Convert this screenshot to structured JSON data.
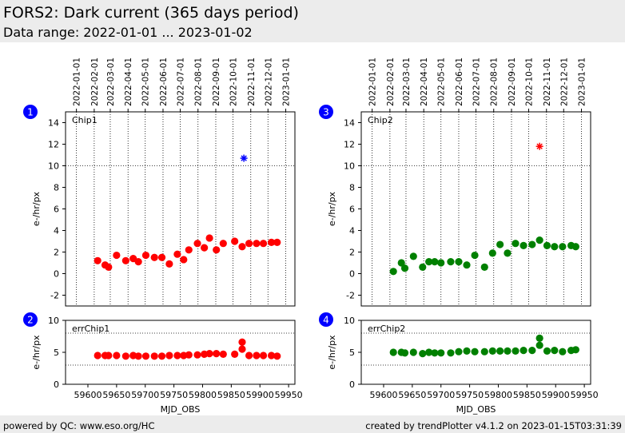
{
  "header": {
    "title": "FORS2: Dark current (365 days period)",
    "subtitle": "Data range: 2022-01-01 ... 2023-01-02"
  },
  "footer": {
    "left": "powered by QC: www.eso.org/HC",
    "right": "created by trendPlotter v4.1.2 on 2023-01-15T03:31:39"
  },
  "colors": {
    "red": "#ff0000",
    "green": "#008000",
    "blue": "#0000ff",
    "badge": "#0000ff"
  },
  "chart_data": [
    {
      "type": "scatter",
      "badge": "1",
      "panel_label": "Chip1",
      "ylabel": "e-/hr/px",
      "xlim": [
        59561,
        59961
      ],
      "ylim": [
        -3,
        15
      ],
      "yticks": [
        -2,
        0,
        2,
        4,
        6,
        8,
        10,
        12,
        14
      ],
      "hlines": [
        10
      ],
      "date_ticks": [
        "2022-01-01",
        "2022-02-01",
        "2022-03-01",
        "2022-04-01",
        "2022-05-01",
        "2022-06-01",
        "2022-07-01",
        "2022-08-01",
        "2022-09-01",
        "2022-10-01",
        "2022-11-01",
        "2022-12-01",
        "2023-01-01"
      ],
      "date_ticks_mjd": [
        59580,
        59611,
        59639,
        59670,
        59700,
        59731,
        59761,
        59792,
        59823,
        59853,
        59884,
        59914,
        59945
      ],
      "series": [
        {
          "color": "#ff0000",
          "marker": "circle",
          "x": [
            59617,
            59630,
            59636,
            59650,
            59666,
            59679,
            59688,
            59701,
            59716,
            59729,
            59742,
            59756,
            59767,
            59776,
            59791,
            59803,
            59812,
            59824,
            59836,
            59856,
            59869,
            59881,
            59894,
            59906,
            59920,
            59930
          ],
          "y": [
            1.2,
            0.8,
            0.6,
            1.7,
            1.2,
            1.4,
            1.1,
            1.7,
            1.5,
            1.5,
            0.9,
            1.8,
            1.3,
            2.2,
            2.8,
            2.4,
            3.3,
            2.2,
            2.8,
            3.0,
            2.5,
            2.8,
            2.8,
            2.8,
            2.9,
            2.9
          ]
        },
        {
          "color": "#0000ff",
          "marker": "star",
          "x": [
            59872
          ],
          "y": [
            10.7
          ]
        }
      ]
    },
    {
      "type": "scatter",
      "badge": "2",
      "panel_label": "errChip1",
      "ylabel": "e-/hr/px",
      "xlabel": "MJD_OBS",
      "xlim": [
        59561,
        59961
      ],
      "ylim": [
        0,
        10
      ],
      "yticks": [
        0,
        5,
        10
      ],
      "xticks": [
        59600,
        59650,
        59700,
        59750,
        59800,
        59850,
        59900,
        59950
      ],
      "hlines": [
        3,
        8
      ],
      "series": [
        {
          "color": "#ff0000",
          "marker": "circle",
          "x": [
            59617,
            59630,
            59636,
            59650,
            59666,
            59679,
            59688,
            59701,
            59716,
            59729,
            59742,
            59756,
            59767,
            59776,
            59791,
            59803,
            59812,
            59824,
            59836,
            59856,
            59869,
            59869,
            59881,
            59894,
            59906,
            59920,
            59930
          ],
          "y": [
            4.5,
            4.5,
            4.5,
            4.5,
            4.4,
            4.5,
            4.4,
            4.4,
            4.4,
            4.4,
            4.5,
            4.5,
            4.5,
            4.6,
            4.6,
            4.7,
            4.8,
            4.8,
            4.7,
            4.7,
            6.6,
            5.5,
            4.5,
            4.5,
            4.5,
            4.5,
            4.4
          ]
        }
      ]
    },
    {
      "type": "scatter",
      "badge": "3",
      "panel_label": "Chip2",
      "ylabel": "e-/hr/px",
      "xlim": [
        59561,
        59961
      ],
      "ylim": [
        -3,
        15
      ],
      "yticks": [
        -2,
        0,
        2,
        4,
        6,
        8,
        10,
        12,
        14
      ],
      "hlines": [
        10
      ],
      "date_ticks": [
        "2022-01-01",
        "2022-02-01",
        "2022-03-01",
        "2022-04-01",
        "2022-05-01",
        "2022-06-01",
        "2022-07-01",
        "2022-08-01",
        "2022-09-01",
        "2022-10-01",
        "2022-11-01",
        "2022-12-01",
        "2023-01-01"
      ],
      "date_ticks_mjd": [
        59580,
        59611,
        59639,
        59670,
        59700,
        59731,
        59761,
        59792,
        59823,
        59853,
        59884,
        59914,
        59945
      ],
      "series": [
        {
          "color": "#008000",
          "marker": "circle",
          "x": [
            59617,
            59631,
            59637,
            59652,
            59668,
            59679,
            59689,
            59700,
            59717,
            59731,
            59745,
            59759,
            59776,
            59790,
            59803,
            59816,
            59830,
            59844,
            59859,
            59872,
            59885,
            59898,
            59912,
            59927,
            59935
          ],
          "y": [
            0.2,
            1.0,
            0.5,
            1.6,
            0.6,
            1.1,
            1.1,
            1.0,
            1.1,
            1.1,
            0.8,
            1.7,
            0.6,
            1.9,
            2.7,
            1.9,
            2.8,
            2.6,
            2.7,
            3.1,
            2.6,
            2.5,
            2.5,
            2.6,
            2.5
          ]
        },
        {
          "color": "#ff0000",
          "marker": "star",
          "x": [
            59872
          ],
          "y": [
            11.8
          ]
        }
      ]
    },
    {
      "type": "scatter",
      "badge": "4",
      "panel_label": "errChip2",
      "ylabel": "e-/hr/px",
      "xlabel": "MJD_OBS",
      "xlim": [
        59561,
        59961
      ],
      "ylim": [
        0,
        10
      ],
      "yticks": [
        0,
        5,
        10
      ],
      "xticks": [
        59600,
        59650,
        59700,
        59750,
        59800,
        59850,
        59900,
        59950
      ],
      "hlines": [
        3,
        8
      ],
      "series": [
        {
          "color": "#008000",
          "marker": "circle",
          "x": [
            59617,
            59631,
            59637,
            59652,
            59668,
            59679,
            59689,
            59700,
            59717,
            59731,
            59745,
            59759,
            59776,
            59790,
            59803,
            59816,
            59830,
            59844,
            59859,
            59872,
            59872,
            59885,
            59898,
            59912,
            59927,
            59935
          ],
          "y": [
            5.0,
            5.0,
            4.9,
            5.0,
            4.8,
            5.0,
            4.9,
            4.9,
            4.9,
            5.1,
            5.2,
            5.1,
            5.1,
            5.2,
            5.2,
            5.2,
            5.2,
            5.3,
            5.3,
            7.2,
            6.1,
            5.2,
            5.3,
            5.1,
            5.3,
            5.4
          ]
        }
      ]
    }
  ]
}
